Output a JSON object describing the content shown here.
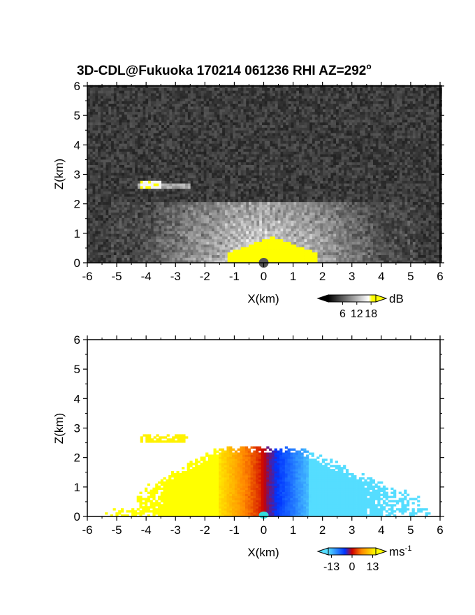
{
  "title": "3D-CDL@Fukuoka 170214 061236 RHI AZ=292",
  "title_degree": "o",
  "chart_data": [
    {
      "type": "heatmap",
      "panel": "top",
      "quantity": "backscatter intensity",
      "xlabel": "X(km)",
      "ylabel": "Z(km)",
      "xlim": [
        -6,
        6
      ],
      "ylim": [
        0,
        6
      ],
      "xticks": [
        "-6",
        "-5",
        "-4",
        "-3",
        "-2",
        "-1",
        "0",
        "1",
        "2",
        "3",
        "4",
        "5",
        "6"
      ],
      "yticks": [
        "0",
        "1",
        "2",
        "3",
        "4",
        "5",
        "6"
      ],
      "colorbar": {
        "unit": "dB",
        "range": [
          0,
          20
        ],
        "tick_labels": [
          "6",
          "12",
          "18"
        ],
        "tick_values": [
          6,
          12,
          18
        ],
        "colors": [
          "#000000",
          "#ffffff",
          "#ffff00"
        ]
      },
      "features": {
        "strong_echo_region": {
          "x": [
            -1.2,
            1.8
          ],
          "z": [
            0,
            0.9
          ],
          "approx_db": 20
        },
        "cloud_layer": {
          "x": [
            -4.2,
            -3.5
          ],
          "z": [
            2.55,
            2.75
          ],
          "approx_db": 20
        },
        "boundary_layer_top_km": 2.1
      }
    },
    {
      "type": "heatmap",
      "panel": "bottom",
      "quantity": "radial velocity",
      "xlabel": "X(km)",
      "ylabel": "Z(km)",
      "xlim": [
        -6,
        6
      ],
      "ylim": [
        0,
        6
      ],
      "xticks": [
        "-6",
        "-5",
        "-4",
        "-3",
        "-2",
        "-1",
        "0",
        "1",
        "2",
        "3",
        "4",
        "5",
        "6"
      ],
      "yticks": [
        "0",
        "1",
        "2",
        "3",
        "4",
        "5",
        "6"
      ],
      "colorbar": {
        "unit": "ms",
        "unit_exponent": "-1",
        "range": [
          -15,
          15
        ],
        "tick_labels": [
          "-13",
          "0",
          "13"
        ],
        "tick_values": [
          -13,
          0,
          13
        ],
        "colors": [
          "#55ddff",
          "#0033ff",
          "#cc0000",
          "#ff8800",
          "#ffff00"
        ]
      },
      "features": {
        "left_side_velocity": "positive (toward +13)",
        "right_side_velocity": "negative (toward -13)",
        "echo_top_km": 2.3,
        "echo_extent_x": [
          -5.3,
          5.5
        ]
      }
    }
  ]
}
